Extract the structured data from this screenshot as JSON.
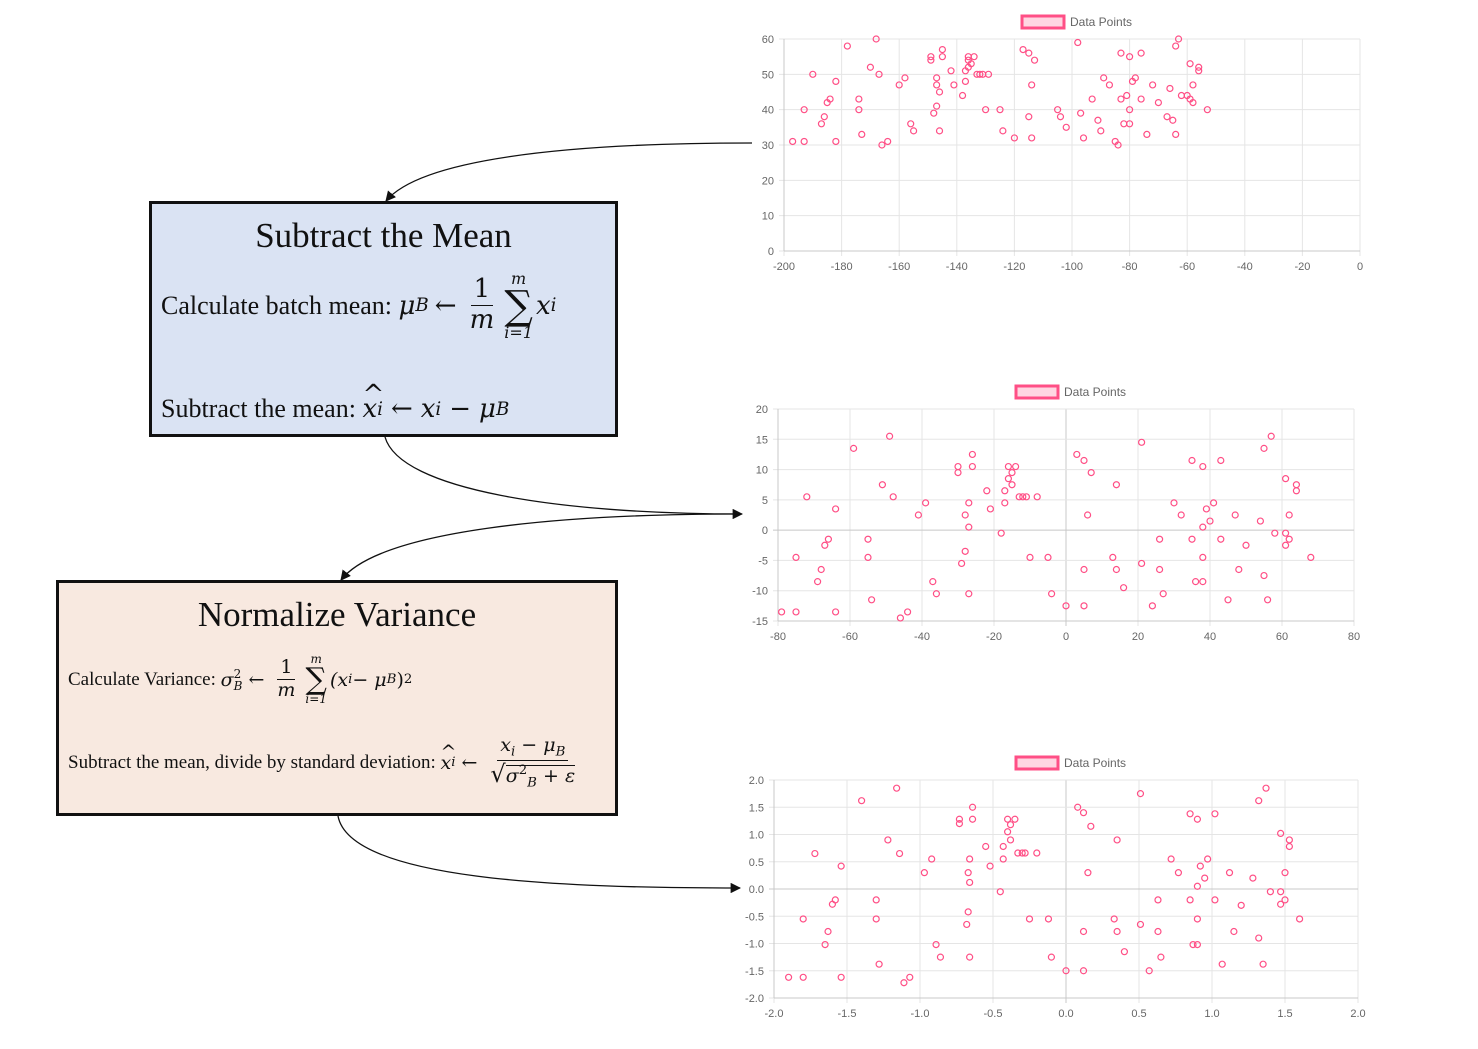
{
  "mean_box": {
    "title": "Subtract the Mean",
    "calc_label": "Calculate batch mean:",
    "sub_label": "Subtract the mean:",
    "sym_mu": "μ",
    "sym_B": "B",
    "arrow": "←",
    "one": "1",
    "m": "m",
    "sigma": "∑",
    "i_eq_1": "i=1",
    "x": "x",
    "i": "i",
    "minus": "−"
  },
  "var_box": {
    "title": "Normalize Variance",
    "calc_label": "Calculate Variance:",
    "sub_label": "Subtract the mean, divide by standard deviation:",
    "sym_sigma": "σ",
    "two": "2",
    "B": "B",
    "arrow": "←",
    "one": "1",
    "m": "m",
    "sigma": "∑",
    "i_eq_1": "i=1",
    "paren_expr": "(x",
    "i": "i",
    "minus_mu": " − μ",
    "close": ")",
    "sqrt": "√",
    "plus_eps": " + ε",
    "x": "x"
  },
  "colors": {
    "accent": "#ff4f86",
    "fill": "#ffd6e2",
    "grid": "#e5e5e5",
    "axis": "#c8c8c8"
  },
  "chart_data": [
    {
      "type": "scatter",
      "legend": "Data Points",
      "xlim": [
        -200,
        0
      ],
      "ylim": [
        0,
        60
      ],
      "xticks": [
        -200,
        -180,
        -160,
        -140,
        -120,
        -100,
        -80,
        -60,
        -40,
        -20,
        0
      ],
      "yticks": [
        0,
        10,
        20,
        30,
        40,
        50,
        60
      ],
      "points": [
        [
          -197,
          31
        ],
        [
          -193,
          31
        ],
        [
          -193,
          40
        ],
        [
          -190,
          50
        ],
        [
          -187,
          36
        ],
        [
          -186,
          38
        ],
        [
          -185,
          42
        ],
        [
          -184,
          43
        ],
        [
          -182,
          48
        ],
        [
          -182,
          31
        ],
        [
          -178,
          58
        ],
        [
          -174,
          43
        ],
        [
          -174,
          40
        ],
        [
          -173,
          33
        ],
        [
          -170,
          52
        ],
        [
          -168,
          60
        ],
        [
          -167,
          50
        ],
        [
          -166,
          30
        ],
        [
          -164,
          31
        ],
        [
          -160,
          47
        ],
        [
          -158,
          49
        ],
        [
          -156,
          36
        ],
        [
          -155,
          34
        ],
        [
          -149,
          55
        ],
        [
          -149,
          54
        ],
        [
          -148,
          39
        ],
        [
          -147,
          41
        ],
        [
          -147,
          47
        ],
        [
          -147,
          49
        ],
        [
          -146,
          45
        ],
        [
          -146,
          34
        ],
        [
          -145,
          57
        ],
        [
          -145,
          55
        ],
        [
          -142,
          51
        ],
        [
          -141,
          47
        ],
        [
          -138,
          44
        ],
        [
          -137,
          48
        ],
        [
          -137,
          51
        ],
        [
          -136,
          52
        ],
        [
          -136,
          54
        ],
        [
          -136,
          55
        ],
        [
          -135,
          53
        ],
        [
          -134,
          55
        ],
        [
          -133,
          50
        ],
        [
          -132,
          50
        ],
        [
          -131,
          50
        ],
        [
          -130,
          40
        ],
        [
          -129,
          50
        ],
        [
          -125,
          40
        ],
        [
          -124,
          34
        ],
        [
          -120,
          32
        ],
        [
          -117,
          57
        ],
        [
          -115,
          56
        ],
        [
          -115,
          38
        ],
        [
          -114,
          47
        ],
        [
          -114,
          32
        ],
        [
          -113,
          54
        ],
        [
          -105,
          40
        ],
        [
          -104,
          38
        ],
        [
          -102,
          35
        ],
        [
          -98,
          59
        ],
        [
          -97,
          39
        ],
        [
          -96,
          32
        ],
        [
          -93,
          43
        ],
        [
          -91,
          37
        ],
        [
          -90,
          34
        ],
        [
          -89,
          49
        ],
        [
          -87,
          47
        ],
        [
          -85,
          31
        ],
        [
          -84,
          30
        ],
        [
          -83,
          56
        ],
        [
          -83,
          43
        ],
        [
          -82,
          36
        ],
        [
          -81,
          44
        ],
        [
          -80,
          55
        ],
        [
          -80,
          40
        ],
        [
          -80,
          36
        ],
        [
          -79,
          48
        ],
        [
          -78,
          49
        ],
        [
          -76,
          56
        ],
        [
          -76,
          43
        ],
        [
          -74,
          33
        ],
        [
          -72,
          47
        ],
        [
          -70,
          42
        ],
        [
          -67,
          38
        ],
        [
          -66,
          46
        ],
        [
          -65,
          37
        ],
        [
          -64,
          58
        ],
        [
          -64,
          33
        ],
        [
          -63,
          60
        ],
        [
          -62,
          44
        ],
        [
          -60,
          44
        ],
        [
          -59,
          53
        ],
        [
          -59,
          43
        ],
        [
          -58,
          42
        ],
        [
          -58,
          47
        ],
        [
          -56,
          52
        ],
        [
          -56,
          51
        ],
        [
          -53,
          40
        ]
      ]
    },
    {
      "type": "scatter",
      "legend": "Data Points",
      "xlim": [
        -80,
        80
      ],
      "ylim": [
        -15,
        20
      ],
      "xticks": [
        -80,
        -60,
        -40,
        -20,
        0,
        20,
        40,
        60,
        80
      ],
      "yticks": [
        -15,
        -10,
        -5,
        0,
        5,
        10,
        15,
        20
      ],
      "points": [
        [
          -79,
          -13.5
        ],
        [
          -75,
          -13.5
        ],
        [
          -75,
          -4.5
        ],
        [
          -72,
          5.5
        ],
        [
          -69,
          -8.5
        ],
        [
          -68,
          -6.5
        ],
        [
          -67,
          -2.5
        ],
        [
          -66,
          -1.5
        ],
        [
          -64,
          3.5
        ],
        [
          -64,
          -13.5
        ],
        [
          -59,
          13.5
        ],
        [
          -55,
          -1.5
        ],
        [
          -55,
          -4.5
        ],
        [
          -54,
          -11.5
        ],
        [
          -51,
          7.5
        ],
        [
          -49,
          15.5
        ],
        [
          -48,
          5.5
        ],
        [
          -46,
          -14.5
        ],
        [
          -44,
          -13.5
        ],
        [
          -41,
          2.5
        ],
        [
          -39,
          4.5
        ],
        [
          -37,
          -8.5
        ],
        [
          -36,
          -10.5
        ],
        [
          -30,
          10.5
        ],
        [
          -30,
          9.5
        ],
        [
          -29,
          -5.5
        ],
        [
          -28,
          -3.5
        ],
        [
          -28,
          2.5
        ],
        [
          -27,
          0.5
        ],
        [
          -27,
          4.5
        ],
        [
          -27,
          -10.5
        ],
        [
          -26,
          12.5
        ],
        [
          -26,
          10.5
        ],
        [
          -22,
          6.5
        ],
        [
          -21,
          3.5
        ],
        [
          -18,
          -0.5
        ],
        [
          -17,
          4.5
        ],
        [
          -17,
          6.5
        ],
        [
          -16,
          10.5
        ],
        [
          -16,
          8.5
        ],
        [
          -15,
          9.5
        ],
        [
          -15,
          7.5
        ],
        [
          -14,
          10.5
        ],
        [
          -13,
          5.5
        ],
        [
          -12,
          5.5
        ],
        [
          -11,
          5.5
        ],
        [
          -10,
          -4.5
        ],
        [
          -8,
          5.5
        ],
        [
          -5,
          -4.5
        ],
        [
          -4,
          -10.5
        ],
        [
          0,
          -12.5
        ],
        [
          3,
          12.5
        ],
        [
          5,
          11.5
        ],
        [
          5,
          -6.5
        ],
        [
          5,
          -12.5
        ],
        [
          6,
          2.5
        ],
        [
          7,
          9.5
        ],
        [
          13,
          -4.5
        ],
        [
          14,
          7.5
        ],
        [
          14,
          -6.5
        ],
        [
          16,
          -9.5
        ],
        [
          21,
          14.5
        ],
        [
          21,
          -5.5
        ],
        [
          24,
          -12.5
        ],
        [
          26,
          -1.5
        ],
        [
          26,
          -6.5
        ],
        [
          27,
          -10.5
        ],
        [
          30,
          4.5
        ],
        [
          32,
          2.5
        ],
        [
          35,
          -1.5
        ],
        [
          35,
          11.5
        ],
        [
          36,
          -8.5
        ],
        [
          38,
          10.5
        ],
        [
          38,
          -8.5
        ],
        [
          38,
          0.5
        ],
        [
          38,
          -4.5
        ],
        [
          39,
          3.5
        ],
        [
          40,
          1.5
        ],
        [
          41,
          4.5
        ],
        [
          43,
          11.5
        ],
        [
          43,
          -1.5
        ],
        [
          45,
          -11.5
        ],
        [
          47,
          2.5
        ],
        [
          48,
          -6.5
        ],
        [
          50,
          -2.5
        ],
        [
          54,
          1.5
        ],
        [
          55,
          13.5
        ],
        [
          55,
          -7.5
        ],
        [
          56,
          -11.5
        ],
        [
          57,
          15.5
        ],
        [
          58,
          -0.5
        ],
        [
          61,
          8.5
        ],
        [
          61,
          -0.5
        ],
        [
          61,
          -2.5
        ],
        [
          62,
          -1.5
        ],
        [
          62,
          2.5
        ],
        [
          64,
          7.5
        ],
        [
          64,
          6.5
        ],
        [
          68,
          -4.5
        ]
      ]
    },
    {
      "type": "scatter",
      "legend": "Data Points",
      "xlim": [
        -2,
        2
      ],
      "ylim": [
        -2,
        2
      ],
      "xticks": [
        -2.0,
        -1.5,
        -1.0,
        -0.5,
        0,
        0.5,
        1.0,
        1.5,
        2.0
      ],
      "yticks": [
        -2.0,
        -1.5,
        -1.0,
        -0.5,
        0,
        0.5,
        1.0,
        1.5,
        2.0
      ],
      "points": [
        [
          -1.9,
          -1.62
        ],
        [
          -1.8,
          -1.62
        ],
        [
          -1.8,
          -0.55
        ],
        [
          -1.72,
          0.65
        ],
        [
          -1.65,
          -1.02
        ],
        [
          -1.63,
          -0.78
        ],
        [
          -1.6,
          -0.28
        ],
        [
          -1.58,
          -0.2
        ],
        [
          -1.54,
          0.42
        ],
        [
          -1.54,
          -1.62
        ],
        [
          -1.4,
          1.62
        ],
        [
          -1.3,
          -0.2
        ],
        [
          -1.3,
          -0.55
        ],
        [
          -1.28,
          -1.38
        ],
        [
          -1.22,
          0.9
        ],
        [
          -1.16,
          1.85
        ],
        [
          -1.14,
          0.65
        ],
        [
          -1.11,
          -1.72
        ],
        [
          -1.07,
          -1.62
        ],
        [
          -0.97,
          0.3
        ],
        [
          -0.92,
          0.55
        ],
        [
          -0.89,
          -1.02
        ],
        [
          -0.86,
          -1.25
        ],
        [
          -0.73,
          1.28
        ],
        [
          -0.73,
          1.2
        ],
        [
          -0.68,
          -0.65
        ],
        [
          -0.67,
          -0.42
        ],
        [
          -0.67,
          0.3
        ],
        [
          -0.66,
          0.55
        ],
        [
          -0.66,
          0.12
        ],
        [
          -0.66,
          -1.25
        ],
        [
          -0.64,
          1.5
        ],
        [
          -0.64,
          1.28
        ],
        [
          -0.55,
          0.78
        ],
        [
          -0.52,
          0.42
        ],
        [
          -0.45,
          -0.05
        ],
        [
          -0.43,
          0.55
        ],
        [
          -0.43,
          0.78
        ],
        [
          -0.4,
          1.28
        ],
        [
          -0.4,
          1.05
        ],
        [
          -0.38,
          1.18
        ],
        [
          -0.38,
          0.9
        ],
        [
          -0.35,
          1.28
        ],
        [
          -0.33,
          0.66
        ],
        [
          -0.3,
          0.66
        ],
        [
          -0.28,
          0.66
        ],
        [
          -0.25,
          -0.55
        ],
        [
          -0.2,
          0.66
        ],
        [
          -0.12,
          -0.55
        ],
        [
          -0.1,
          -1.25
        ],
        [
          0,
          -1.5
        ],
        [
          0.08,
          1.5
        ],
        [
          0.12,
          1.4
        ],
        [
          0.12,
          -0.78
        ],
        [
          0.12,
          -1.5
        ],
        [
          0.15,
          0.3
        ],
        [
          0.17,
          1.15
        ],
        [
          0.33,
          -0.55
        ],
        [
          0.35,
          0.9
        ],
        [
          0.35,
          -0.78
        ],
        [
          0.4,
          -1.15
        ],
        [
          0.51,
          1.75
        ],
        [
          0.51,
          -0.65
        ],
        [
          0.57,
          -1.5
        ],
        [
          0.63,
          -0.2
        ],
        [
          0.63,
          -0.78
        ],
        [
          0.65,
          -1.25
        ],
        [
          0.72,
          0.55
        ],
        [
          0.77,
          0.3
        ],
        [
          0.85,
          -0.2
        ],
        [
          0.85,
          1.38
        ],
        [
          0.87,
          -1.02
        ],
        [
          0.9,
          1.28
        ],
        [
          0.9,
          -1.02
        ],
        [
          0.9,
          0.05
        ],
        [
          0.9,
          -0.55
        ],
        [
          0.92,
          0.42
        ],
        [
          0.95,
          0.2
        ],
        [
          0.97,
          0.55
        ],
        [
          1.02,
          1.38
        ],
        [
          1.02,
          -0.2
        ],
        [
          1.07,
          -1.38
        ],
        [
          1.12,
          0.3
        ],
        [
          1.15,
          -0.78
        ],
        [
          1.2,
          -0.3
        ],
        [
          1.28,
          0.2
        ],
        [
          1.32,
          1.62
        ],
        [
          1.32,
          -0.9
        ],
        [
          1.35,
          -1.38
        ],
        [
          1.37,
          1.85
        ],
        [
          1.4,
          -0.05
        ],
        [
          1.47,
          1.02
        ],
        [
          1.47,
          -0.05
        ],
        [
          1.47,
          -0.28
        ],
        [
          1.5,
          -0.2
        ],
        [
          1.5,
          0.3
        ],
        [
          1.53,
          0.9
        ],
        [
          1.53,
          0.78
        ],
        [
          1.6,
          -0.55
        ]
      ]
    }
  ]
}
